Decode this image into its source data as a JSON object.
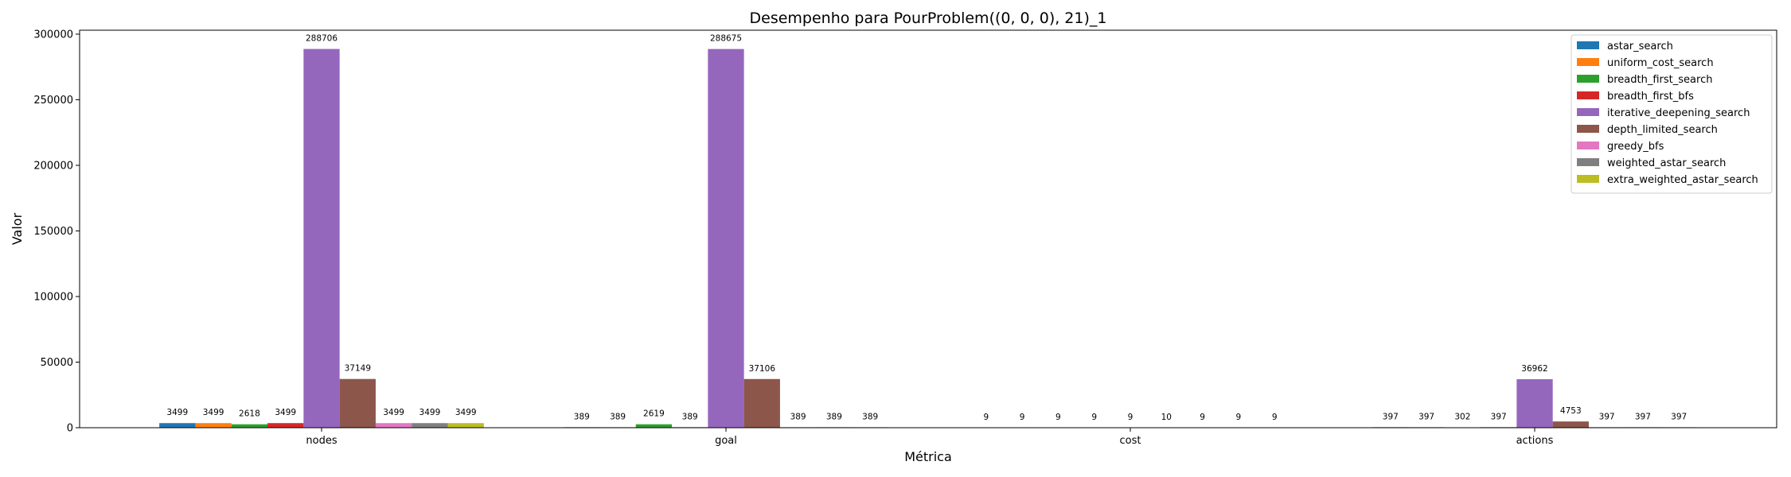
{
  "chart_data": {
    "type": "bar",
    "title": "Desempenho para PourProblem((0, 0, 0), 21)_1",
    "xlabel": "Métrica",
    "ylabel": "Valor",
    "categories": [
      "nodes",
      "goal",
      "cost",
      "actions"
    ],
    "ylim": [
      0,
      303000
    ],
    "yticks": [
      0,
      50000,
      100000,
      150000,
      200000,
      250000,
      300000
    ],
    "legend_position": "top-right",
    "grid": false,
    "series": [
      {
        "name": "astar_search",
        "color": "#1f77b4",
        "values": [
          3499,
          389,
          9,
          397
        ]
      },
      {
        "name": "uniform_cost_search",
        "color": "#ff7f0e",
        "values": [
          3499,
          389,
          9,
          397
        ]
      },
      {
        "name": "breadth_first_search",
        "color": "#2ca02c",
        "values": [
          2618,
          2619,
          9,
          302
        ]
      },
      {
        "name": "breadth_first_bfs",
        "color": "#d62728",
        "values": [
          3499,
          389,
          9,
          397
        ]
      },
      {
        "name": "iterative_deepening_search",
        "color": "#9467bd",
        "values": [
          288706,
          288675,
          9,
          36962
        ]
      },
      {
        "name": "depth_limited_search",
        "color": "#8c564b",
        "values": [
          37149,
          37106,
          10,
          4753
        ]
      },
      {
        "name": "greedy_bfs",
        "color": "#e377c2",
        "values": [
          3499,
          389,
          9,
          397
        ]
      },
      {
        "name": "weighted_astar_search",
        "color": "#7f7f7f",
        "values": [
          3499,
          389,
          9,
          397
        ]
      },
      {
        "name": "extra_weighted_astar_search",
        "color": "#bcbd22",
        "values": [
          3499,
          389,
          9,
          397
        ]
      }
    ]
  }
}
